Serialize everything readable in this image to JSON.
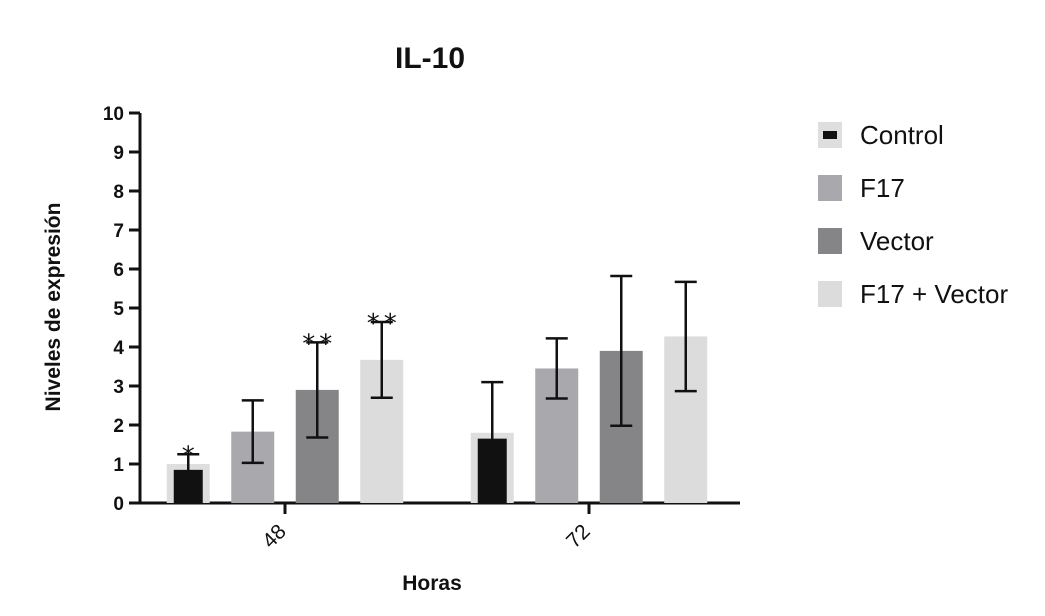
{
  "chart_data": {
    "type": "bar",
    "title": "IL-10",
    "xlabel": "Horas",
    "ylabel": "Niveles de expresión",
    "categories": [
      "48",
      "72"
    ],
    "ylim": [
      0,
      10
    ],
    "yticks": [
      0,
      1,
      2,
      3,
      4,
      5,
      6,
      7,
      8,
      9,
      10
    ],
    "legend_position": "right",
    "series": [
      {
        "name": "Control",
        "color": "#111111",
        "values": [
          0.85,
          1.65
        ],
        "errors": [
          0.4,
          1.45
        ],
        "shadow_values": [
          1.0,
          1.8
        ]
      },
      {
        "name": "F17",
        "color": "#a9a9ad",
        "values": [
          1.83,
          3.45
        ],
        "errors": [
          0.8,
          0.77
        ]
      },
      {
        "name": "Vector",
        "color": "#858587",
        "values": [
          2.9,
          3.9
        ],
        "errors": [
          1.22,
          1.92
        ]
      },
      {
        "name": "F17 + Vector",
        "color": "#dcdcdc",
        "values": [
          3.67,
          4.27
        ],
        "errors": [
          0.97,
          1.4
        ]
      }
    ],
    "annotations": [
      {
        "category": "48",
        "series": "Control",
        "text": "*"
      },
      {
        "category": "48",
        "series": "Vector",
        "text": "**"
      },
      {
        "category": "48",
        "series": "F17 + Vector",
        "text": "**"
      }
    ]
  }
}
